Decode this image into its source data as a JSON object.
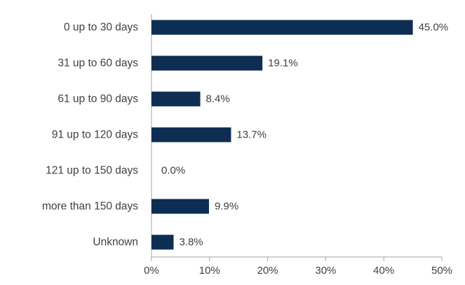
{
  "chart_data": {
    "type": "bar",
    "orientation": "horizontal",
    "categories": [
      "0 up to 30 days",
      "31 up to 60 days",
      "61 up to 90 days",
      "91 up to 120 days",
      "121 up to 150 days",
      "more than 150 days",
      "Unknown"
    ],
    "values": [
      45.0,
      19.1,
      8.4,
      13.7,
      0.0,
      9.9,
      3.8
    ],
    "value_labels": [
      "45.0%",
      "19.1%",
      "8.4%",
      "13.7%",
      "0.0%",
      "9.9%",
      "3.8%"
    ],
    "xlim": [
      0,
      50
    ],
    "x_ticks": [
      0,
      10,
      20,
      30,
      40,
      50
    ],
    "x_tick_labels": [
      "0%",
      "10%",
      "20%",
      "30%",
      "40%",
      "50%"
    ],
    "title": "",
    "xlabel": "",
    "ylabel": "",
    "grid": false,
    "bar_color": "#0d2d52",
    "text_color": "#404040",
    "axis_color": "#a6a6a6"
  }
}
